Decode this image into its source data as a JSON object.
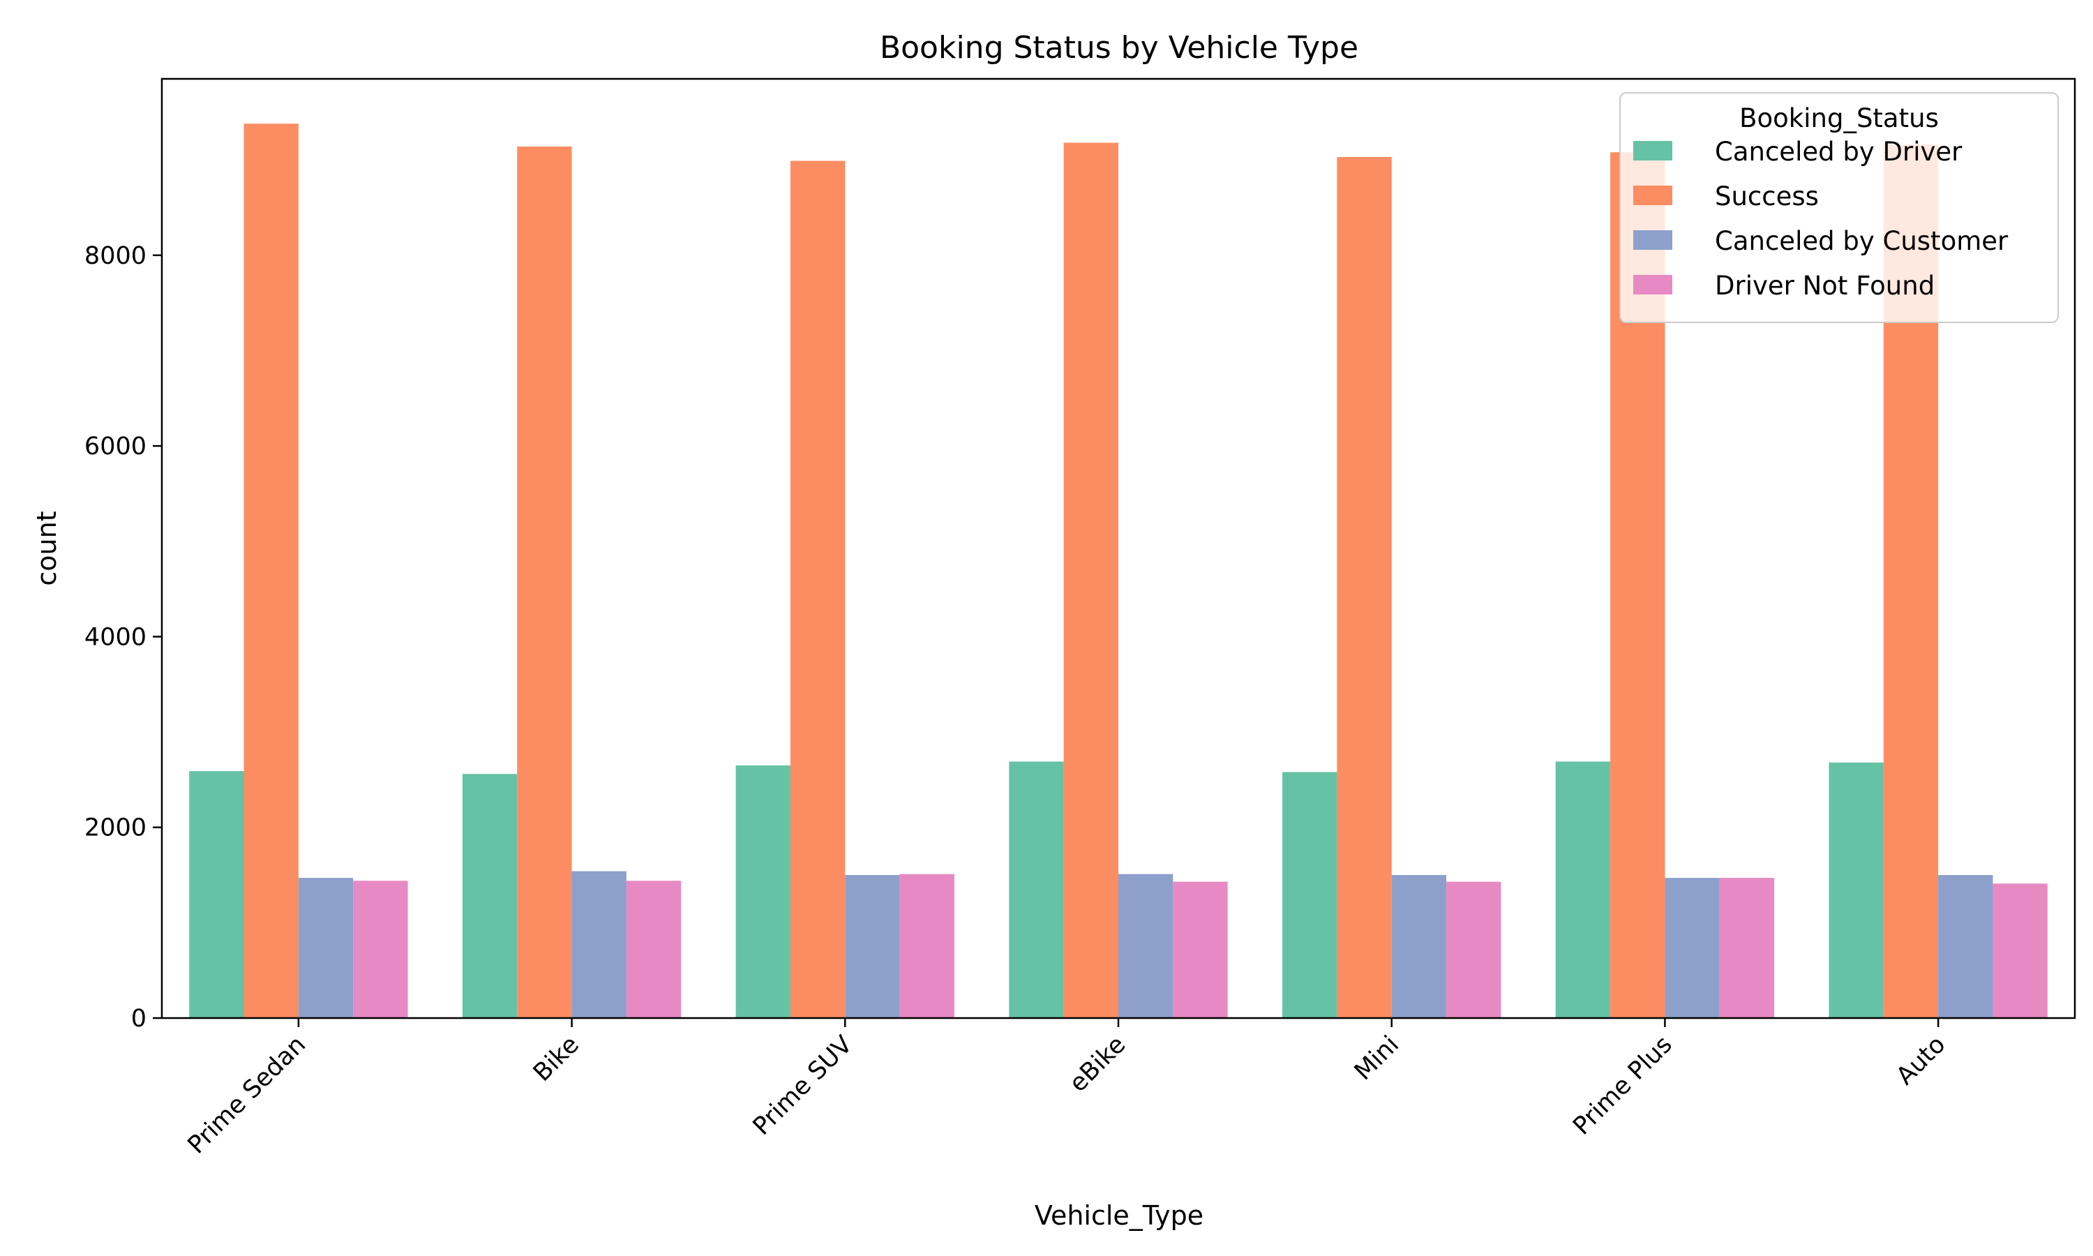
{
  "chart_data": {
    "type": "bar",
    "title": "Booking Status by Vehicle Type",
    "xlabel": "Vehicle_Type",
    "ylabel": "count",
    "categories": [
      "Prime Sedan",
      "Bike",
      "Prime SUV",
      "eBike",
      "Mini",
      "Prime Plus",
      "Auto"
    ],
    "ylim": [
      0,
      9850
    ],
    "yticks": [
      0,
      2000,
      4000,
      6000,
      8000
    ],
    "grid": false,
    "legend": {
      "title": "Booking_Status",
      "placement": "top-right"
    },
    "series": [
      {
        "name": "Canceled by Driver",
        "color": "#66c2a5",
        "values": [
          2590,
          2560,
          2650,
          2690,
          2580,
          2690,
          2680
        ]
      },
      {
        "name": "Success",
        "color": "#fc8d62",
        "values": [
          9380,
          9140,
          8990,
          9180,
          9030,
          9080,
          9160
        ]
      },
      {
        "name": "Canceled by Customer",
        "color": "#8da0cb",
        "values": [
          1470,
          1540,
          1500,
          1510,
          1500,
          1470,
          1500
        ]
      },
      {
        "name": "Driver Not Found",
        "color": "#e78ac3",
        "values": [
          1440,
          1440,
          1510,
          1430,
          1430,
          1470,
          1410
        ]
      }
    ]
  }
}
